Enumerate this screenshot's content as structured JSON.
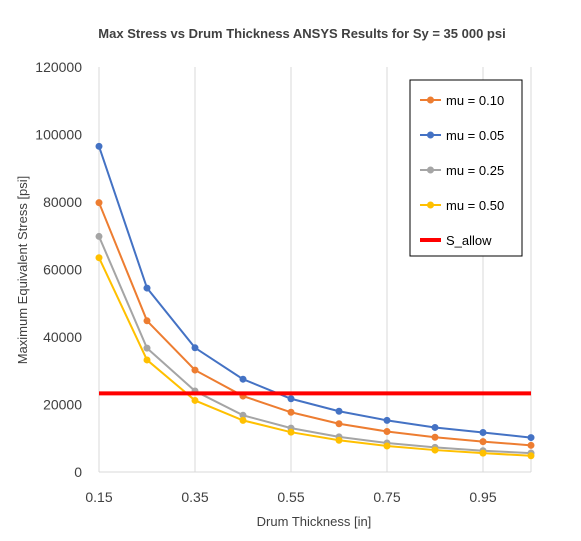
{
  "chart_data": {
    "type": "line",
    "title": "Max Stress vs Drum Thickness ANSYS Results for Sy = 35 000 psi",
    "xlabel": "Drum Thickness [in]",
    "ylabel": "Maximum Equivalent Stress [psi]",
    "xlim": [
      0.15,
      1.05
    ],
    "ylim": [
      0,
      120000
    ],
    "x_ticks": [
      "0.15",
      "0.35",
      "0.55",
      "0.75",
      "0.95"
    ],
    "y_ticks": [
      "0",
      "20000",
      "40000",
      "60000",
      "80000",
      "100000",
      "120000"
    ],
    "grid": "vertical",
    "legend_position": "top-right",
    "x": [
      0.15,
      0.25,
      0.35,
      0.45,
      0.55,
      0.65,
      0.75,
      0.85,
      0.95,
      1.05
    ],
    "series": [
      {
        "name": "mu = 0.10",
        "color": "#ED7D31",
        "values": [
          79800,
          44800,
          30200,
          22500,
          17700,
          14300,
          12000,
          10300,
          9000,
          7900
        ]
      },
      {
        "name": "mu = 0.05",
        "color": "#4472C4",
        "values": [
          96500,
          54500,
          36800,
          27500,
          21700,
          18000,
          15300,
          13200,
          11700,
          10200
        ]
      },
      {
        "name": "mu = 0.25",
        "color": "#A5A5A5",
        "values": [
          69800,
          36700,
          24000,
          16800,
          13000,
          10400,
          8600,
          7300,
          6300,
          5600
        ]
      },
      {
        "name": "mu = 0.50",
        "color": "#FFC000",
        "values": [
          63500,
          33200,
          21200,
          15300,
          11800,
          9400,
          7700,
          6500,
          5600,
          4800
        ]
      }
    ],
    "reference_lines": [
      {
        "name": "S_allow",
        "color": "#FF0000",
        "value": 23300
      }
    ]
  }
}
